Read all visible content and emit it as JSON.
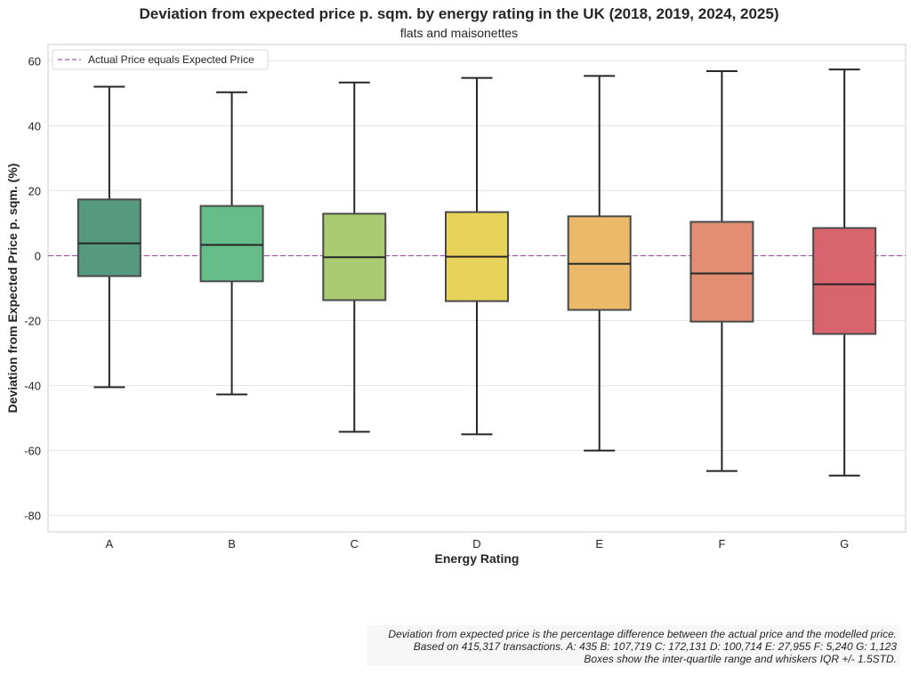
{
  "chart_data": {
    "type": "box",
    "title": "Deviation from expected price p. sqm. by energy rating in the UK (2018, 2019, 2024, 2025)",
    "subtitle": "flats and maisonettes",
    "xlabel": "Energy Rating",
    "ylabel": "Deviation from Expected Price p. sqm. (%)",
    "ylim": [
      -85,
      65
    ],
    "yticks": [
      -80,
      -60,
      -40,
      -20,
      0,
      20,
      40,
      60
    ],
    "grid": true,
    "legend": {
      "placement": "top-left",
      "entries": [
        "Actual Price equals Expected Price"
      ]
    },
    "reference_line": {
      "y": 0,
      "color": "#a05aa8",
      "style": "dashed"
    },
    "categories": [
      "A",
      "B",
      "C",
      "D",
      "E",
      "F",
      "G"
    ],
    "boxes": [
      {
        "cat": "A",
        "whisker_low": -40.5,
        "q1": -6.3,
        "median": 3.8,
        "q3": 17.3,
        "whisker_high": 52.0,
        "color": "#55997f"
      },
      {
        "cat": "B",
        "whisker_low": -42.7,
        "q1": -7.9,
        "median": 3.3,
        "q3": 15.3,
        "whisker_high": 50.3,
        "color": "#66bd89"
      },
      {
        "cat": "C",
        "whisker_low": -54.2,
        "q1": -13.7,
        "median": -0.5,
        "q3": 12.9,
        "whisker_high": 53.3,
        "color": "#a9cc72"
      },
      {
        "cat": "D",
        "whisker_low": -55.0,
        "q1": -14.0,
        "median": -0.3,
        "q3": 13.4,
        "whisker_high": 54.7,
        "color": "#e8d35a"
      },
      {
        "cat": "E",
        "whisker_low": -60.0,
        "q1": -16.7,
        "median": -2.5,
        "q3": 12.1,
        "whisker_high": 55.3,
        "color": "#ebb96a"
      },
      {
        "cat": "F",
        "whisker_low": -66.3,
        "q1": -20.3,
        "median": -5.5,
        "q3": 10.4,
        "whisker_high": 56.8,
        "color": "#e38e72"
      },
      {
        "cat": "G",
        "whisker_low": -67.7,
        "q1": -24.1,
        "median": -8.8,
        "q3": 8.5,
        "whisker_high": 57.3,
        "color": "#d8656e"
      }
    ],
    "footnote": [
      "Deviation from expected price is the percentage difference between the actual price and the modelled price.",
      "Based on 415,317 transactions. A: 435 B: 107,719 C: 172,131 D: 100,714 E: 27,955 F: 5,240 G: 1,123",
      "Boxes show the inter-quartile range and whiskers IQR +/- 1.5STD."
    ]
  }
}
